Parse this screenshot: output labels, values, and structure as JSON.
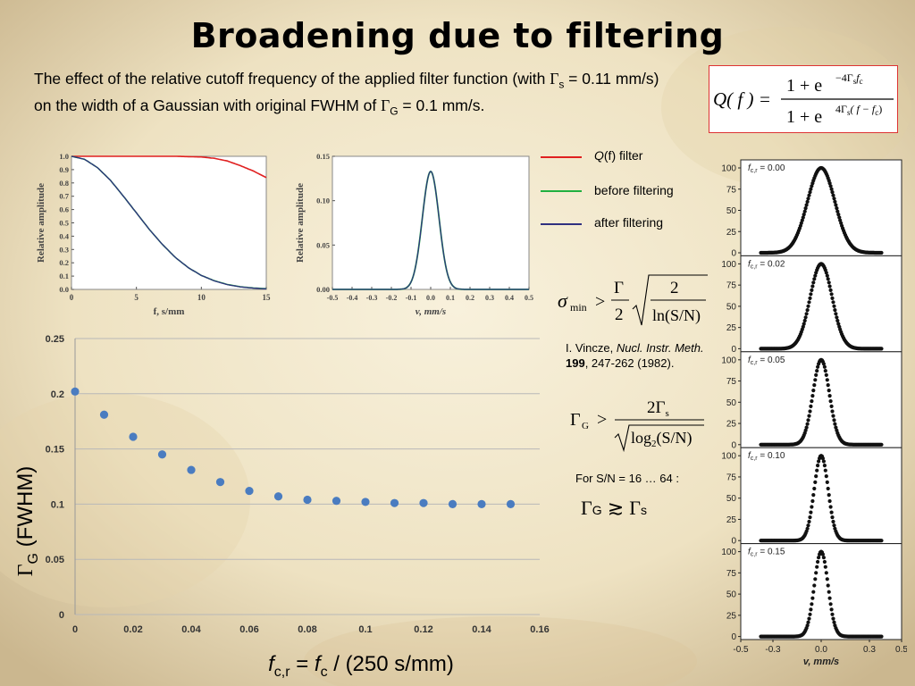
{
  "slide": {
    "title": "Broadening due to filtering",
    "description_parts": [
      "The effect of the relative cutoff frequency of the applied filter function (with ",
      "Γ",
      "s",
      " = 0.11 mm/s) on the width of a Gaussian with original FWHM of ",
      "Γ",
      "G",
      " = 0.1 mm/s."
    ]
  },
  "formulas": {
    "filter": {
      "lhs": "Q( f ) =",
      "num": "1 + e",
      "num_exp": "−4Γ",
      "num_exp_sub1": "s",
      "num_exp_tail": "f",
      "num_exp_sub2": "c",
      "den": "1 + e",
      "den_exp": "4Γ",
      "den_exp_sub1": "s",
      "den_exp_tail": "( f − f",
      "den_exp_sub2": "c",
      "den_exp_close": ")"
    },
    "sigma": {
      "lhs": "σ",
      "lhs_sub": "min",
      "gt": ">",
      "frac_num": "Γ",
      "frac_den": "2",
      "root_num": "2",
      "root_den": "ln(S/N)"
    },
    "gamma": {
      "lhs": "Γ",
      "lhs_sub": "G",
      "gt": ">",
      "num": "2Γ",
      "num_sub": "s",
      "den": "log",
      "den_sub": "2",
      "den_tail": "(S/N)"
    },
    "approx": {
      "lhs": "Γ",
      "lhs_sub": "G",
      "op": "≳",
      "rhs": "Γ",
      "rhs_sub": "s"
    }
  },
  "reference": {
    "author": "I. Vincze, ",
    "journal": "Nucl. Instr. Meth.",
    "volume": "199",
    "pages": ", 247-262 (1982)."
  },
  "sn_note": "For S/N = 16 … 64 :",
  "legend": [
    {
      "label_pre": "Q",
      "label_paren": "(f)",
      "label_post": " filter",
      "color": "#e02020"
    },
    {
      "label": "before filtering",
      "color": "#20b040"
    },
    {
      "label": "after filtering",
      "color": "#303080"
    }
  ],
  "chart_data": [
    {
      "type": "line",
      "xlabel": "f, s/mm",
      "ylabel": "Relative amplitude",
      "xlim": [
        0,
        15
      ],
      "ylim": [
        0.0,
        1.0
      ],
      "xticks": [
        "0",
        "5",
        "10",
        "15"
      ],
      "yticks": [
        "0.0",
        "0.1",
        "0.2",
        "0.3",
        "0.4",
        "0.5",
        "0.6",
        "0.7",
        "0.8",
        "0.9",
        "1.0"
      ],
      "series": [
        {
          "name": "Q(f) filter",
          "color": "#e02020",
          "x": [
            0,
            2,
            4,
            6,
            8,
            10,
            11,
            12,
            13,
            14,
            15
          ],
          "values": [
            1.0,
            1.0,
            1.0,
            1.0,
            1.0,
            0.995,
            0.985,
            0.965,
            0.93,
            0.89,
            0.84
          ]
        },
        {
          "name": "before filtering",
          "color": "#20b040",
          "x": [
            0,
            1,
            2,
            3,
            4,
            5,
            6,
            7,
            8,
            9,
            10,
            11,
            12,
            13,
            14,
            15
          ],
          "values": [
            1.0,
            0.978,
            0.915,
            0.82,
            0.7,
            0.575,
            0.45,
            0.338,
            0.24,
            0.163,
            0.105,
            0.065,
            0.037,
            0.02,
            0.011,
            0.005
          ]
        },
        {
          "name": "after filtering",
          "color": "#303080",
          "x": [
            0,
            1,
            2,
            3,
            4,
            5,
            6,
            7,
            8,
            9,
            10,
            11,
            12,
            13,
            14,
            15
          ],
          "values": [
            1.0,
            0.978,
            0.915,
            0.82,
            0.7,
            0.575,
            0.45,
            0.338,
            0.24,
            0.163,
            0.105,
            0.064,
            0.036,
            0.019,
            0.01,
            0.004
          ]
        }
      ]
    },
    {
      "type": "line",
      "xlabel": "v, mm/s",
      "ylabel": "Relative amplitude",
      "xlim": [
        -0.5,
        0.5
      ],
      "ylim": [
        0.0,
        0.15
      ],
      "xticks": [
        "-0.5",
        "-0.4",
        "-0.3",
        "-0.2",
        "-0.1",
        "0.0",
        "0.1",
        "0.2",
        "0.3",
        "0.4",
        "0.5"
      ],
      "yticks": [
        "0.00",
        "0.05",
        "0.10",
        "0.15"
      ],
      "gaussian": {
        "center": 0,
        "fwhm": 0.1,
        "amplitude": 0.133
      },
      "series": [
        {
          "name": "before filtering",
          "color": "#20b040"
        },
        {
          "name": "after filtering",
          "color": "#303080"
        }
      ]
    },
    {
      "type": "scatter",
      "xlabel_parts": [
        "f",
        "c,r",
        " = ",
        "f",
        "c",
        " / (250 s/mm)"
      ],
      "ylabel_parts": [
        "Γ",
        "G",
        "  (FWHM)"
      ],
      "xlim": [
        0,
        0.16
      ],
      "ylim": [
        0,
        0.25
      ],
      "xticks": [
        "0",
        "0.02",
        "0.04",
        "0.06",
        "0.08",
        "0.1",
        "0.12",
        "0.14",
        "0.16"
      ],
      "yticks": [
        "0",
        "0.05",
        "0.1",
        "0.15",
        "0.2",
        "0.25"
      ],
      "grid": true,
      "color": "#4a7cc0",
      "x": [
        0,
        0.01,
        0.02,
        0.03,
        0.04,
        0.05,
        0.06,
        0.07,
        0.08,
        0.09,
        0.1,
        0.11,
        0.12,
        0.13,
        0.14,
        0.15
      ],
      "values": [
        0.202,
        0.181,
        0.161,
        0.145,
        0.131,
        0.12,
        0.112,
        0.107,
        0.104,
        0.103,
        0.102,
        0.101,
        0.101,
        0.1,
        0.1,
        0.1
      ]
    },
    {
      "type": "scatter",
      "panels": [
        {
          "label": "f",
          "label_sub": "c,r",
          "label_value": " = 0.00",
          "fwhm": 0.2
        },
        {
          "label": "f",
          "label_sub": "c,r",
          "label_value": " = 0.02",
          "fwhm": 0.161
        },
        {
          "label": "f",
          "label_sub": "c,r",
          "label_value": " = 0.05",
          "fwhm": 0.12
        },
        {
          "label": "f",
          "label_sub": "c,r",
          "label_value": " = 0.10",
          "fwhm": 0.102
        },
        {
          "label": "f",
          "label_sub": "c,r",
          "label_value": " = 0.15",
          "fwhm": 0.1
        }
      ],
      "amplitude": 100,
      "xlim": [
        -0.5,
        0.5
      ],
      "ylim": [
        0,
        100
      ],
      "xticks": [
        "-0.5",
        "-0.3",
        "0.0",
        "0.3",
        "0.5"
      ],
      "yticks": [
        "0",
        "25",
        "50",
        "75",
        "100"
      ],
      "xlabel": "v, mm/s"
    }
  ]
}
